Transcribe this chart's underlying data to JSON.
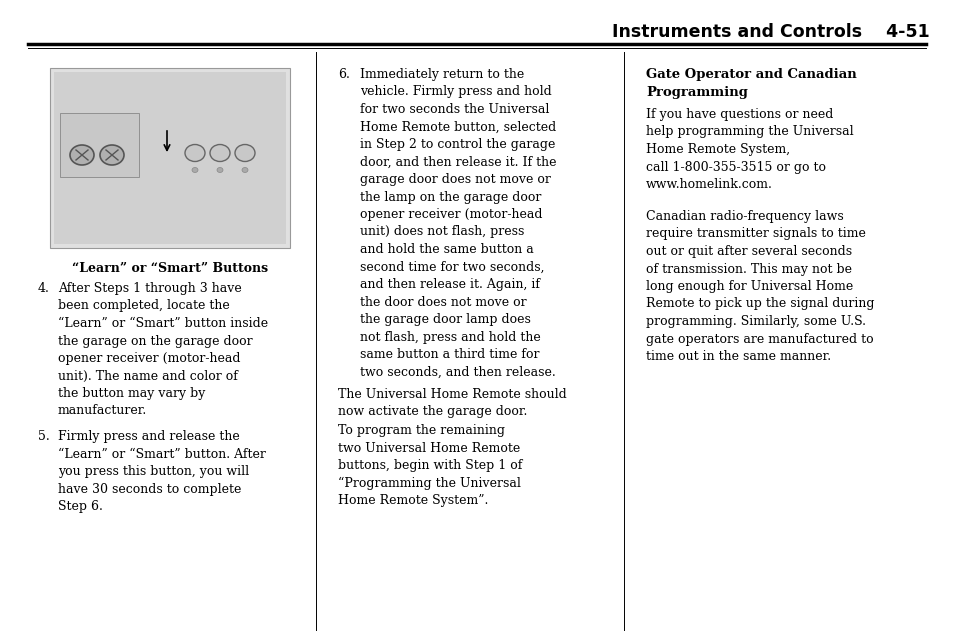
{
  "page_bg": "#ffffff",
  "header_text": "Instruments and Controls",
  "header_page": "4-51",
  "header_fontsize": 12.5,
  "body_fontsize": 9.0,
  "caption_fontsize": 9.0,
  "heading3_fontsize": 9.5,
  "image_caption": "“Learn” or “Smart” Buttons",
  "item4_label": "4.",
  "item4_text": "After Steps 1 through 3 have\nbeen completed, locate the\n“Learn” or “Smart” button inside\nthe garage on the garage door\nopener receiver (motor-head\nunit). The name and color of\nthe button may vary by\nmanufacturer.",
  "item5_label": "5.",
  "item5_text": "Firmly press and release the\n“Learn” or “Smart” button. After\nyou press this button, you will\nhave 30 seconds to complete\nStep 6.",
  "item6_label": "6.",
  "item6_text": "Immediately return to the\nvehicle. Firmly press and hold\nfor two seconds the Universal\nHome Remote button, selected\nin Step 2 to control the garage\ndoor, and then release it. If the\ngarage door does not move or\nthe lamp on the garage door\nopener receiver (motor-head\nunit) does not flash, press\nand hold the same button a\nsecond time for two seconds,\nand then release it. Again, if\nthe door does not move or\nthe garage door lamp does\nnot flash, press and hold the\nsame button a third time for\ntwo seconds, and then release.",
  "para1_text": "The Universal Home Remote should\nnow activate the garage door.",
  "para2_text": "To program the remaining\ntwo Universal Home Remote\nbuttons, begin with Step 1 of\n“Programming the Universal\nHome Remote System”.",
  "col3_heading1": "Gate Operator and Canadian",
  "col3_heading2": "Programming",
  "col3_para1": "If you have questions or need\nhelp programming the Universal\nHome Remote System,\ncall 1-800-355-3515 or go to\nwww.homelink.com.",
  "col3_para2": "Canadian radio-frequency laws\nrequire transmitter signals to time\nout or quit after several seconds\nof transmission. This may not be\nlong enough for Universal Home\nRemote to pick up the signal during\nprogramming. Similarly, some U.S.\ngate operators are manufactured to\ntime out in the same manner."
}
